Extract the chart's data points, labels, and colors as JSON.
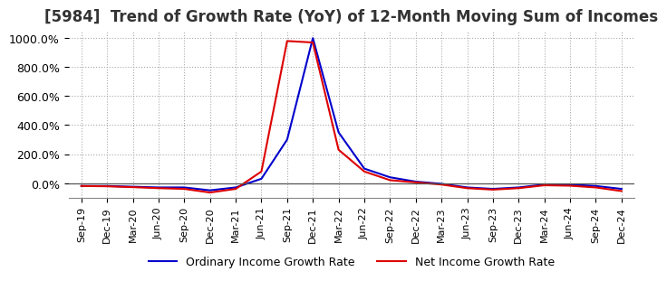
{
  "title": "[5984]  Trend of Growth Rate (YoY) of 12-Month Moving Sum of Incomes",
  "title_fontsize": 12,
  "ylim": [
    -100,
    1050
  ],
  "yticks": [
    0,
    200,
    400,
    600,
    800,
    1000
  ],
  "yticklabels": [
    "0.0%",
    "200.0%",
    "400.0%",
    "600.0%",
    "800.0%",
    "1000.0%"
  ],
  "background_color": "#ffffff",
  "grid_color": "#aaaaaa",
  "ordinary_color": "#0000cc",
  "net_color": "#dd0000",
  "legend_ordinary": "Ordinary Income Growth Rate",
  "legend_net": "Net Income Growth Rate",
  "dates": [
    "Sep-19",
    "Dec-19",
    "Mar-20",
    "Jun-20",
    "Sep-20",
    "Dec-20",
    "Mar-21",
    "Jun-21",
    "Sep-21",
    "Dec-21",
    "Mar-22",
    "Jun-22",
    "Sep-22",
    "Dec-22",
    "Mar-23",
    "Jun-23",
    "Sep-23",
    "Dec-23",
    "Mar-24",
    "Jun-24",
    "Sep-24",
    "Dec-24"
  ],
  "ordinary_values": [
    -20,
    -20,
    -25,
    -30,
    -30,
    -50,
    -30,
    30,
    300,
    1000,
    350,
    100,
    40,
    10,
    -5,
    -30,
    -40,
    -30,
    -10,
    -10,
    -20,
    -40
  ],
  "net_values": [
    -20,
    -22,
    -28,
    -35,
    -40,
    -65,
    -40,
    80,
    980,
    970,
    230,
    80,
    20,
    5,
    -10,
    -35,
    -45,
    -35,
    -15,
    -18,
    -30,
    -55
  ]
}
